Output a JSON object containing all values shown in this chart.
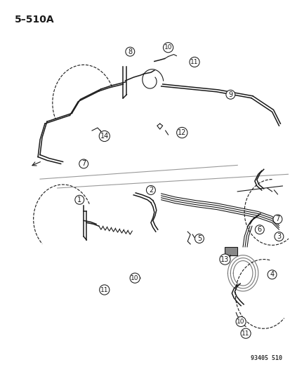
{
  "title": "5–510A",
  "watermark": "93405 510",
  "bg_color": "#ffffff",
  "fg_color": "#1a1a1a",
  "title_fontsize": 10,
  "label_fontsize": 7,
  "figsize": [
    4.14,
    5.33
  ],
  "dpi": 100
}
